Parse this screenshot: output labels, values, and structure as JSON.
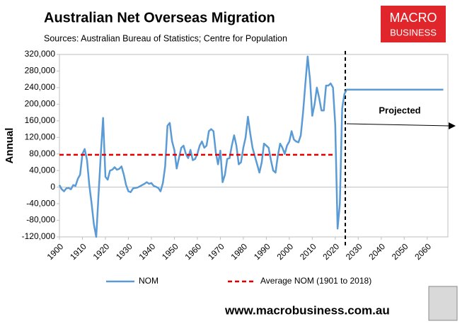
{
  "chart_data": {
    "type": "line",
    "title": "Australian Net Overseas Migration",
    "subtitle": "Sources: Australian Bureau of Statistics; Centre for Population",
    "y_label": "Annual",
    "annotation": "Projected",
    "logo_top": "MACRO",
    "logo_bottom": "BUSINESS",
    "website": "www.macrobusiness.com.au",
    "xlim": [
      1900,
      2069
    ],
    "ylim": [
      -120000,
      320000
    ],
    "xticks": [
      1900,
      1910,
      1920,
      1930,
      1940,
      1950,
      1960,
      1970,
      1980,
      1990,
      2000,
      2010,
      2020,
      2030,
      2040,
      2050,
      2060
    ],
    "yticks": [
      {
        "value": -120000,
        "label": "-120,000"
      },
      {
        "value": -80000,
        "label": "-80,000"
      },
      {
        "value": -40000,
        "label": "-40,000"
      },
      0,
      {
        "value": 40000,
        "label": "40,000"
      },
      {
        "value": 80000,
        "label": "80,000"
      },
      {
        "value": 120000,
        "label": "120,000"
      },
      {
        "value": 160000,
        "label": "160,000"
      },
      {
        "value": 200000,
        "label": "200,000"
      },
      {
        "value": 240000,
        "label": "240,000"
      },
      {
        "value": 280000,
        "label": "280,000"
      },
      {
        "value": 320000,
        "label": "320,000"
      }
    ],
    "grid": false,
    "series": [
      {
        "name": "NOM",
        "color": "#5b9bd5",
        "dash": false,
        "x": [
          1900,
          1901,
          1902,
          1903,
          1904,
          1905,
          1906,
          1907,
          1908,
          1909,
          1910,
          1911,
          1912,
          1913,
          1914,
          1915,
          1916,
          1917,
          1918,
          1919,
          1920,
          1921,
          1922,
          1923,
          1924,
          1925,
          1926,
          1927,
          1928,
          1929,
          1930,
          1931,
          1932,
          1933,
          1934,
          1935,
          1936,
          1937,
          1938,
          1939,
          1940,
          1941,
          1942,
          1943,
          1944,
          1945,
          1946,
          1947,
          1948,
          1949,
          1950,
          1951,
          1952,
          1953,
          1954,
          1955,
          1956,
          1957,
          1958,
          1959,
          1960,
          1961,
          1962,
          1963,
          1964,
          1965,
          1966,
          1967,
          1968,
          1969,
          1970,
          1971,
          1972,
          1973,
          1974,
          1975,
          1976,
          1977,
          1978,
          1979,
          1980,
          1981,
          1982,
          1983,
          1984,
          1985,
          1986,
          1987,
          1988,
          1989,
          1990,
          1991,
          1992,
          1993,
          1994,
          1995,
          1996,
          1997,
          1998,
          1999,
          2000,
          2001,
          2002,
          2003,
          2004,
          2005,
          2006,
          2007,
          2008,
          2009,
          2010,
          2011,
          2012,
          2013,
          2014,
          2015,
          2016,
          2017,
          2018,
          2019,
          2020,
          2021,
          2022,
          2023,
          2024,
          2025,
          2067
        ],
        "values": [
          5000,
          -5000,
          -10000,
          -3000,
          -2000,
          -5000,
          5000,
          3000,
          20000,
          30000,
          80000,
          92000,
          65000,
          5000,
          -40000,
          -90000,
          -120000,
          -20000,
          80000,
          167000,
          25000,
          18000,
          40000,
          42000,
          48000,
          42000,
          44000,
          50000,
          30000,
          5000,
          -10000,
          -12000,
          -3000,
          -2000,
          -1000,
          2000,
          5000,
          8000,
          12000,
          8000,
          10000,
          3000,
          1000,
          -2000,
          -10000,
          10000,
          50000,
          148000,
          155000,
          110000,
          90000,
          45000,
          70000,
          95000,
          100000,
          80000,
          70000,
          90000,
          65000,
          68000,
          80000,
          100000,
          110000,
          95000,
          100000,
          135000,
          140000,
          135000,
          85000,
          55000,
          88000,
          12000,
          30000,
          68000,
          70000,
          100000,
          125000,
          100000,
          55000,
          60000,
          95000,
          120000,
          170000,
          130000,
          95000,
          75000,
          55000,
          35000,
          60000,
          105000,
          100000,
          95000,
          65000,
          40000,
          35000,
          75000,
          105000,
          95000,
          80000,
          100000,
          110000,
          135000,
          115000,
          110000,
          108000,
          125000,
          180000,
          250000,
          315000,
          260000,
          172000,
          200000,
          240000,
          215000,
          185000,
          185000,
          245000,
          245000,
          250000,
          240000,
          150000,
          -100000,
          -40000,
          190000,
          225000,
          235000,
          235000
        ]
      },
      {
        "name": "Average NOM (1901 to 2018)",
        "color": "#e00000",
        "dash": true,
        "x": [
          1900,
          2020
        ],
        "values": [
          78000,
          78000
        ]
      }
    ]
  }
}
